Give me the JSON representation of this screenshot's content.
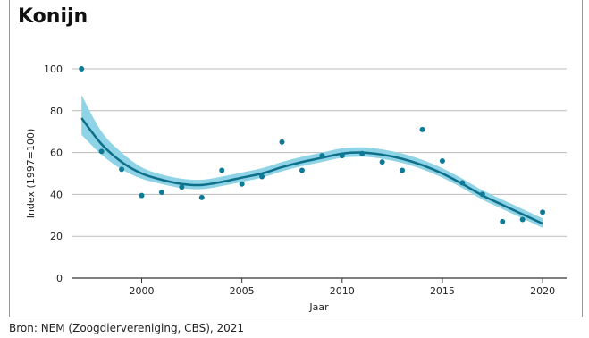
{
  "title": "Konijn",
  "source": "Bron: NEM (Zoogdiervereniging, CBS), 2021",
  "chart_data": {
    "type": "line",
    "title": "Konijn",
    "xlabel": "Jaar",
    "ylabel": "Index (1997=100)",
    "xlim": [
      1996.5,
      2021.2
    ],
    "ylim": [
      0,
      100
    ],
    "x_ticks": [
      2000,
      2005,
      2010,
      2015,
      2020
    ],
    "y_ticks": [
      0,
      20,
      40,
      60,
      80,
      100
    ],
    "grid": "horizontal",
    "colors": {
      "points": "#0e7a96",
      "trend": "#0e6f8a",
      "band": "#8ed3e6",
      "grid": "#bbbbbb",
      "axis": "#333333"
    },
    "observed": {
      "x": [
        1997,
        1998,
        1999,
        2000,
        2001,
        2002,
        2003,
        2004,
        2005,
        2006,
        2007,
        2008,
        2009,
        2010,
        2011,
        2012,
        2013,
        2014,
        2015,
        2016,
        2017,
        2018,
        2019,
        2020
      ],
      "y": [
        100,
        60.5,
        52,
        39.5,
        41,
        43.5,
        38.5,
        51.5,
        45,
        48.5,
        65,
        51.5,
        58.5,
        58.5,
        59.5,
        55.5,
        51.5,
        71,
        56,
        45.5,
        40,
        27,
        28,
        31.5
      ]
    },
    "trend": {
      "x": [
        1997,
        1998,
        1999,
        2000,
        2001,
        2002,
        2003,
        2004,
        2005,
        2006,
        2007,
        2008,
        2009,
        2010,
        2011,
        2012,
        2013,
        2014,
        2015,
        2016,
        2017,
        2018,
        2019,
        2020
      ],
      "y": [
        76.5,
        64,
        55.5,
        50,
        47,
        45,
        44.5,
        46,
        48,
        50,
        53,
        55.5,
        57.5,
        59.5,
        60,
        59,
        57,
        54,
        50,
        45,
        39.5,
        35,
        30.5,
        26
      ],
      "lower": [
        68.5,
        59,
        52,
        47.5,
        45,
        43,
        42.5,
        44,
        46,
        48,
        51,
        53.5,
        55.5,
        57.5,
        58,
        57,
        55,
        52,
        48,
        43,
        37.5,
        33,
        28.5,
        24
      ],
      "upper": [
        87.5,
        70,
        60,
        53,
        49.5,
        47.5,
        47,
        48.5,
        50.5,
        52.5,
        55.5,
        58,
        60,
        62,
        62.5,
        61.5,
        59.5,
        56.5,
        52.5,
        47.5,
        42,
        37.5,
        33,
        28.5
      ]
    }
  }
}
